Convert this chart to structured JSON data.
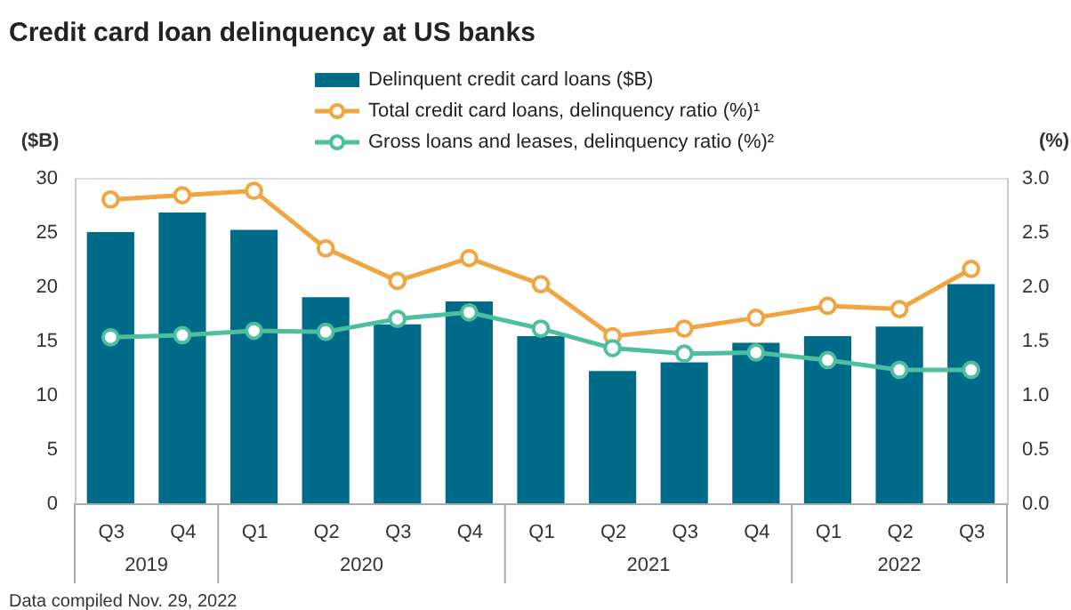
{
  "chart_data": {
    "type": "bar",
    "title": "Credit card loan delinquency at US banks",
    "categories": [
      "Q3",
      "Q4",
      "Q1",
      "Q2",
      "Q3",
      "Q4",
      "Q1",
      "Q2",
      "Q3",
      "Q4",
      "Q1",
      "Q2",
      "Q3"
    ],
    "series": [
      {
        "name": "Delinquent credit card loans ($B)",
        "color": "#006a89",
        "values": [
          25.0,
          26.8,
          25.2,
          19.0,
          16.5,
          18.6,
          15.4,
          12.2,
          13.0,
          14.8,
          15.4,
          16.3,
          20.2
        ]
      },
      {
        "name": "Total credit card loans, delinquency ratio (%)¹",
        "type": "line",
        "axis": "y2",
        "color": "#f0a540",
        "values": [
          2.8,
          2.84,
          2.88,
          2.35,
          2.05,
          2.26,
          2.02,
          1.54,
          1.61,
          1.71,
          1.82,
          1.79,
          2.16
        ]
      },
      {
        "name": "Gross loans and leases, delinquency ratio (%)²",
        "type": "line",
        "axis": "y2",
        "color": "#4dbf9f",
        "values": [
          1.53,
          1.55,
          1.59,
          1.58,
          1.7,
          1.76,
          1.61,
          1.43,
          1.38,
          1.39,
          1.32,
          1.23,
          1.23
        ]
      }
    ],
    "ylabel": "($B)",
    "y2label": "(%)",
    "ylim": [
      0,
      30
    ],
    "yticks": [
      0,
      5,
      10,
      15,
      20,
      25,
      30
    ],
    "y2lim": [
      0,
      3
    ],
    "y2ticks": [
      {
        "value": 0,
        "label": "0.0"
      },
      0.5,
      {
        "value": 1,
        "label": "1.0"
      },
      1.5,
      {
        "value": 2,
        "label": "2.0"
      },
      2.5,
      {
        "value": 3,
        "label": "3.0"
      }
    ],
    "marker": "circle",
    "line_style": "solid",
    "grid": false,
    "legend": "top",
    "annotations": [
      "2019",
      "2020",
      "2021",
      "2022",
      "Data compiled Nov. 29, 2022"
    ]
  }
}
